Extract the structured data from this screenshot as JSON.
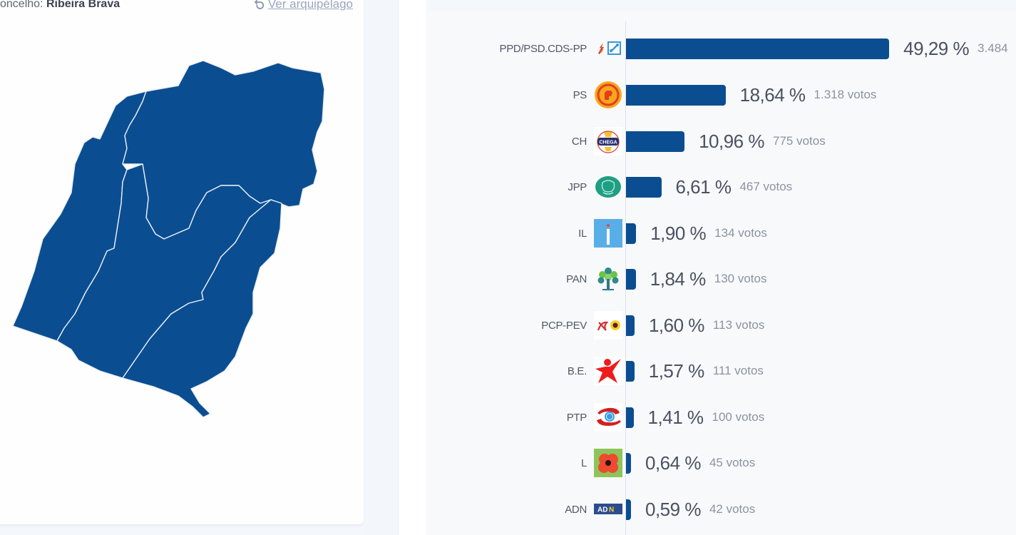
{
  "map_panel": {
    "concelho_label": "oncelho:",
    "concelho_value": "Ribeira Brava",
    "view_archipelago_link": "Ver arquipélago",
    "map_fill_color": "#0b4d91"
  },
  "chart_data": {
    "type": "bar",
    "orientation": "horizontal",
    "title": "",
    "xlabel": "",
    "ylabel": "",
    "bar_color": "#0b4d91",
    "categories": [
      "PPD/PSD.CDS-PP",
      "PS",
      "CH",
      "JPP",
      "IL",
      "PAN",
      "PCP-PEV",
      "B.E.",
      "PTP",
      "L",
      "ADN"
    ],
    "values": [
      49.29,
      18.64,
      10.96,
      6.61,
      1.9,
      1.84,
      1.6,
      1.57,
      1.41,
      0.64,
      0.59
    ],
    "votes": [
      3484,
      1318,
      775,
      467,
      134,
      130,
      113,
      111,
      100,
      45,
      42
    ],
    "xlim": [
      0,
      50
    ],
    "grid": false,
    "legend": false
  },
  "rows": [
    {
      "party": "PPD/PSD.CDS-PP",
      "pct": 49.29,
      "pct_label": "49,29 %",
      "votes_label": "3.484",
      "logo": "psd-cds-logo-icon"
    },
    {
      "party": "PS",
      "pct": 18.64,
      "pct_label": "18,64 %",
      "votes_label": "1.318 votos",
      "logo": "ps-fist-logo-icon"
    },
    {
      "party": "CH",
      "pct": 10.96,
      "pct_label": "10,96 %",
      "votes_label": "775 votos",
      "logo": "chega-logo-icon"
    },
    {
      "party": "JPP",
      "pct": 6.61,
      "pct_label": "6,61 %",
      "votes_label": "467 votos",
      "logo": "jpp-logo-icon"
    },
    {
      "party": "IL",
      "pct": 1.9,
      "pct_label": "1,90 %",
      "votes_label": "134 votos",
      "logo": "il-logo-icon"
    },
    {
      "party": "PAN",
      "pct": 1.84,
      "pct_label": "1,84 %",
      "votes_label": "130 votos",
      "logo": "pan-tree-logo-icon"
    },
    {
      "party": "PCP-PEV",
      "pct": 1.6,
      "pct_label": "1,60 %",
      "votes_label": "113 votos",
      "logo": "pcp-pev-logo-icon"
    },
    {
      "party": "B.E.",
      "pct": 1.57,
      "pct_label": "1,57 %",
      "votes_label": "111 votos",
      "logo": "be-star-logo-icon"
    },
    {
      "party": "PTP",
      "pct": 1.41,
      "pct_label": "1,41 %",
      "votes_label": "100 votos",
      "logo": "ptp-logo-icon"
    },
    {
      "party": "L",
      "pct": 0.64,
      "pct_label": "0,64 %",
      "votes_label": "45 votos",
      "logo": "livre-poppy-logo-icon"
    },
    {
      "party": "ADN",
      "pct": 0.59,
      "pct_label": "0,59 %",
      "votes_label": "42 votos",
      "logo": "adn-logo-icon"
    }
  ]
}
